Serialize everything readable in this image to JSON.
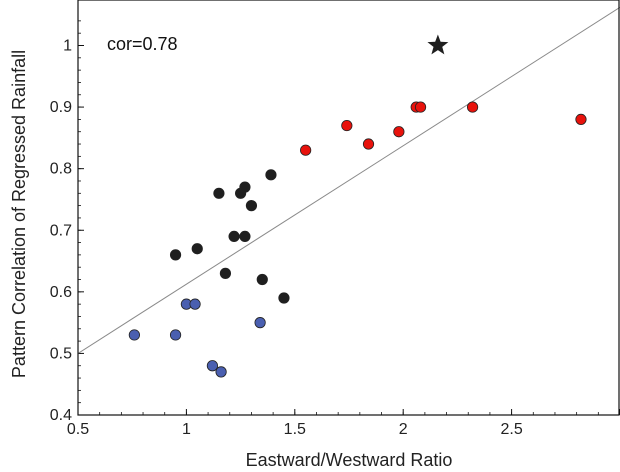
{
  "chart_data": {
    "type": "scatter",
    "title": "",
    "xlabel": "Eastward/Westward Ratio",
    "ylabel": "Pattern Correlation of Regressed Rainfall",
    "xlim": [
      0.5,
      3
    ],
    "ylim": [
      0.4,
      1.05
    ],
    "x_ticks": [
      0.5,
      1,
      1.5,
      2,
      2.5,
      3
    ],
    "x_tick_labels": [
      "0.5",
      "1",
      "1.5",
      "2",
      "2.5",
      "3"
    ],
    "y_ticks": [
      0.4,
      0.5,
      0.6,
      0.7,
      0.8,
      0.9,
      1.0
    ],
    "y_tick_labels": [
      "0.4",
      "0.5",
      "0.6",
      "0.7",
      "0.8",
      "0.9",
      "1"
    ],
    "grid": false,
    "annotation": "cor=0.78",
    "colors": {
      "red": "#e8120c",
      "black": "#1f1f1f",
      "blue": "#4a5fb0",
      "fit_line": "#8a8a8a",
      "star": "#1f1f1f"
    },
    "series": [
      {
        "color_key": "red",
        "points": [
          [
            1.55,
            0.83
          ],
          [
            1.74,
            0.87
          ],
          [
            1.84,
            0.84
          ],
          [
            1.98,
            0.86
          ],
          [
            2.06,
            0.9
          ],
          [
            2.08,
            0.9
          ],
          [
            2.32,
            0.9
          ],
          [
            2.82,
            0.88
          ]
        ]
      },
      {
        "color_key": "black",
        "points": [
          [
            0.95,
            0.66
          ],
          [
            1.05,
            0.67
          ],
          [
            1.15,
            0.76
          ],
          [
            1.18,
            0.63
          ],
          [
            1.22,
            0.69
          ],
          [
            1.25,
            0.76
          ],
          [
            1.27,
            0.77
          ],
          [
            1.27,
            0.69
          ],
          [
            1.3,
            0.74
          ],
          [
            1.35,
            0.62
          ],
          [
            1.39,
            0.79
          ],
          [
            1.45,
            0.59
          ]
        ]
      },
      {
        "color_key": "blue",
        "points": [
          [
            0.76,
            0.53
          ],
          [
            0.95,
            0.53
          ],
          [
            1.0,
            0.58
          ],
          [
            1.04,
            0.58
          ],
          [
            1.12,
            0.48
          ],
          [
            1.16,
            0.47
          ],
          [
            1.34,
            0.55
          ]
        ]
      }
    ],
    "star": [
      2.16,
      1.0
    ],
    "fit_line": [
      [
        0.5,
        0.5
      ],
      [
        3.0,
        1.062
      ]
    ]
  }
}
